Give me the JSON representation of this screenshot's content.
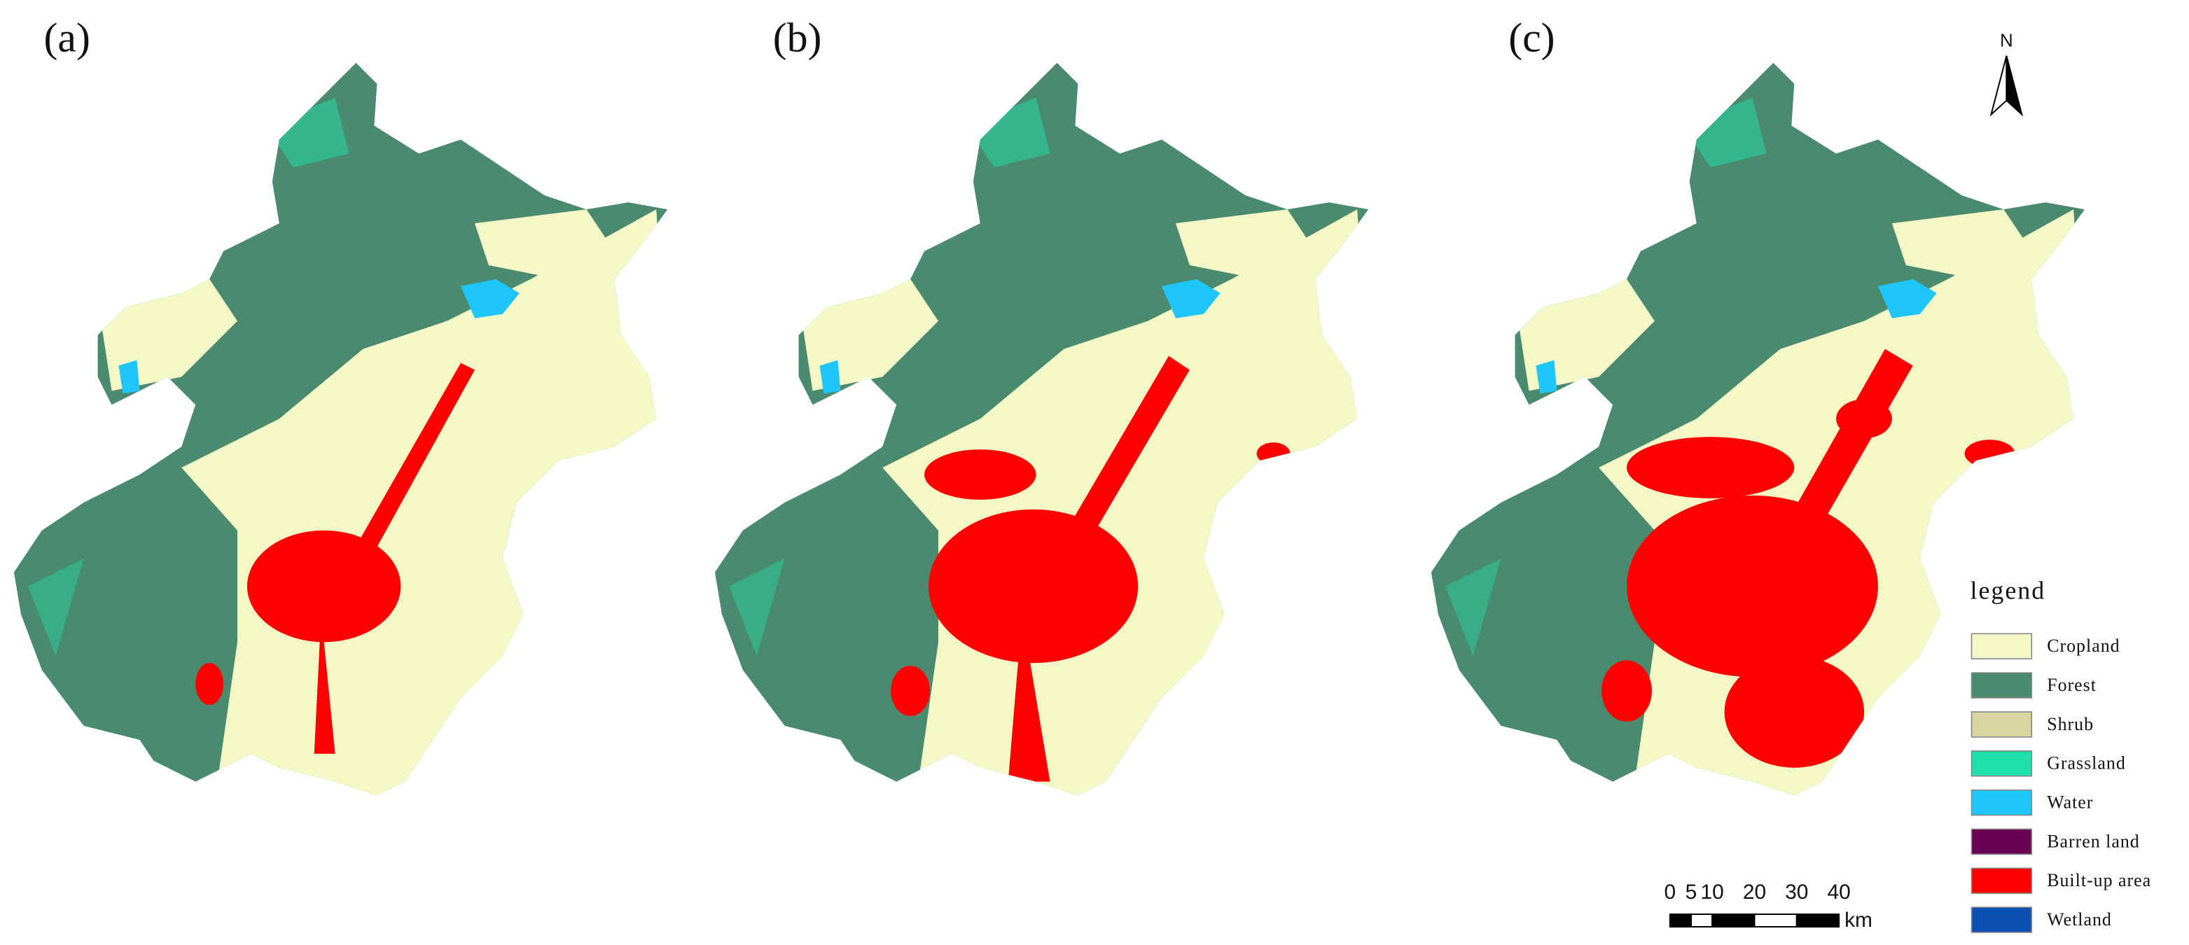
{
  "panels": [
    "(a)",
    "(b)",
    "(c)"
  ],
  "north_arrow": "N",
  "legend": {
    "title": "legend",
    "items": [
      {
        "label": "Cropland",
        "color": "#f4f8c6"
      },
      {
        "label": "Forest",
        "color": "#4a8a6e"
      },
      {
        "label": "Shrub",
        "color": "#d9d5a1"
      },
      {
        "label": "Grassland",
        "color": "#1fe0a9"
      },
      {
        "label": "Water",
        "color": "#1ec6fb"
      },
      {
        "label": "Barren land",
        "color": "#6a0052"
      },
      {
        "label": "Built-up area",
        "color": "#ff0000"
      },
      {
        "label": "Wetland",
        "color": "#0b50b2"
      }
    ]
  },
  "scale_bar": {
    "ticks": [
      0,
      5,
      10,
      20,
      30,
      40
    ],
    "unit": "km"
  }
}
